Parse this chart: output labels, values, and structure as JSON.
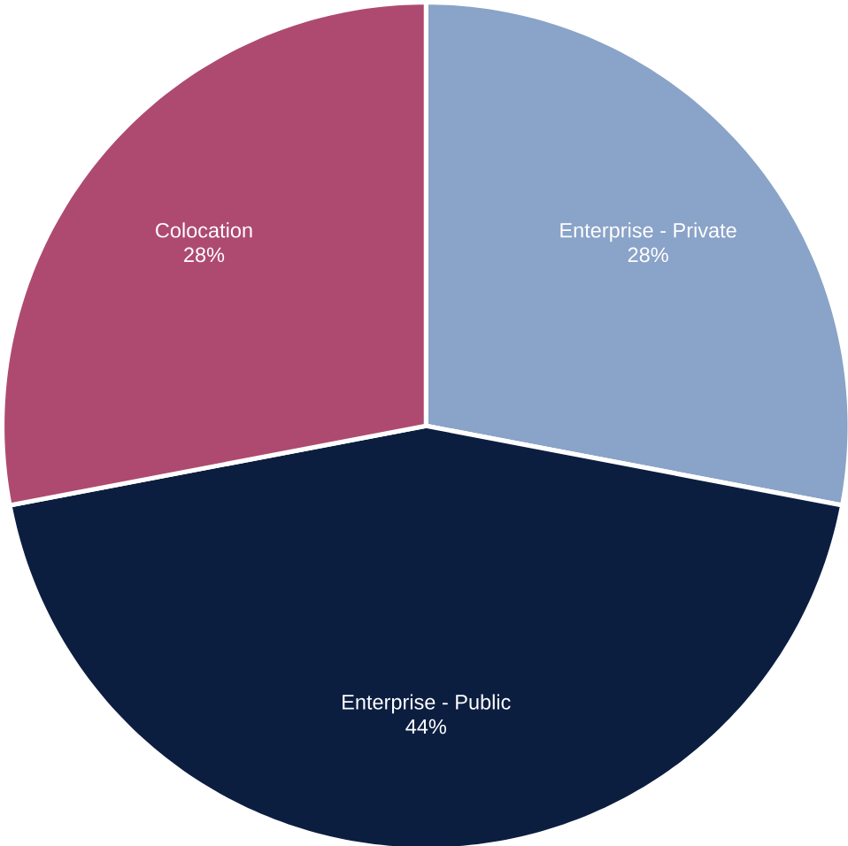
{
  "chart_data": {
    "type": "pie",
    "categories": [
      "Enterprise - Private",
      "Enterprise - Public",
      "Colocation"
    ],
    "values": [
      28,
      44,
      28
    ],
    "colors": [
      "#8aa3c8",
      "#0c1e40",
      "#ae4a70"
    ],
    "value_labels": [
      "28%",
      "44%",
      "28%"
    ]
  }
}
